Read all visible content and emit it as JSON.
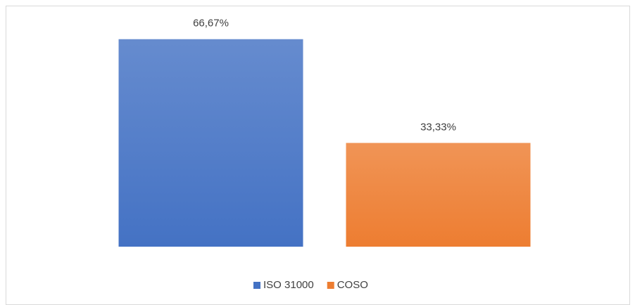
{
  "chart_data": {
    "type": "bar",
    "categories": [
      null
    ],
    "series": [
      {
        "name": "ISO 31000",
        "color": "#4472c4",
        "values": [
          66.67
        ],
        "value_labels": [
          "66,67%"
        ]
      },
      {
        "name": "COSO",
        "color": "#ed7d31",
        "values": [
          33.33
        ],
        "value_labels": [
          "33,33%"
        ]
      }
    ],
    "ylim": [
      0,
      70
    ],
    "grid": false,
    "legend": "bottom"
  }
}
